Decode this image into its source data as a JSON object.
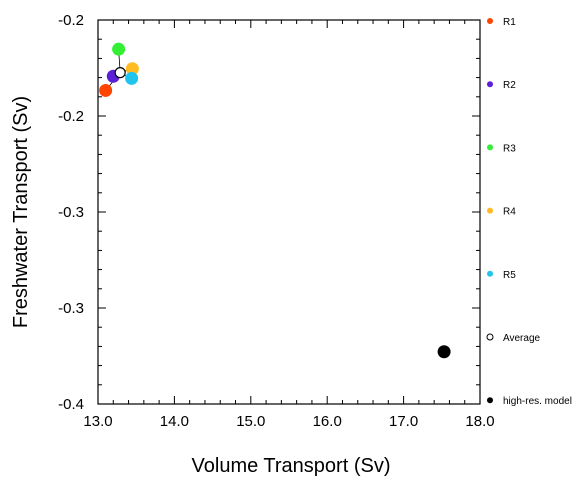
{
  "chart_data": {
    "type": "scatter",
    "title": "",
    "xlabel": "Volume Transport (Sv)",
    "ylabel": "Freshwater Transport (Sv)",
    "xlim": [
      13.0,
      18.0
    ],
    "ylim": [
      -0.4,
      -0.2
    ],
    "x_ticks": [
      13.0,
      14.0,
      15.0,
      16.0,
      17.0,
      18.0
    ],
    "x_tick_labels": [
      "13.0",
      "14.0",
      "15.0",
      "16.0",
      "17.0",
      "18.0"
    ],
    "y_ticks": [
      -0.2,
      -0.25,
      -0.3,
      -0.35,
      -0.4
    ],
    "y_tick_labels": [
      "-0.2",
      "-0.2",
      "-0.3",
      "-0.3",
      "-0.4"
    ],
    "grid": false,
    "legend_position": "right-outside",
    "series": [
      {
        "name": "R1",
        "color": "#ff4500",
        "x": [
          13.1
        ],
        "y": [
          -0.2367
        ]
      },
      {
        "name": "R2",
        "color": "#5b1fd6",
        "x": [
          13.2
        ],
        "y": [
          -0.2293
        ]
      },
      {
        "name": "R3",
        "color": "#33ee33",
        "x": [
          13.27
        ],
        "y": [
          -0.2152
        ]
      },
      {
        "name": "R4",
        "color": "#ffbb22",
        "x": [
          13.45
        ],
        "y": [
          -0.2254
        ]
      },
      {
        "name": "R5",
        "color": "#22c4ee",
        "x": [
          13.44
        ],
        "y": [
          -0.2304
        ]
      },
      {
        "name": "Average",
        "color": "#000000",
        "marker": "hollow",
        "x": [
          13.29
        ],
        "y": [
          -0.2274
        ]
      },
      {
        "name": "high-res. model",
        "color": "#000000",
        "x": [
          17.53
        ],
        "y": [
          -0.3728
        ]
      }
    ]
  }
}
